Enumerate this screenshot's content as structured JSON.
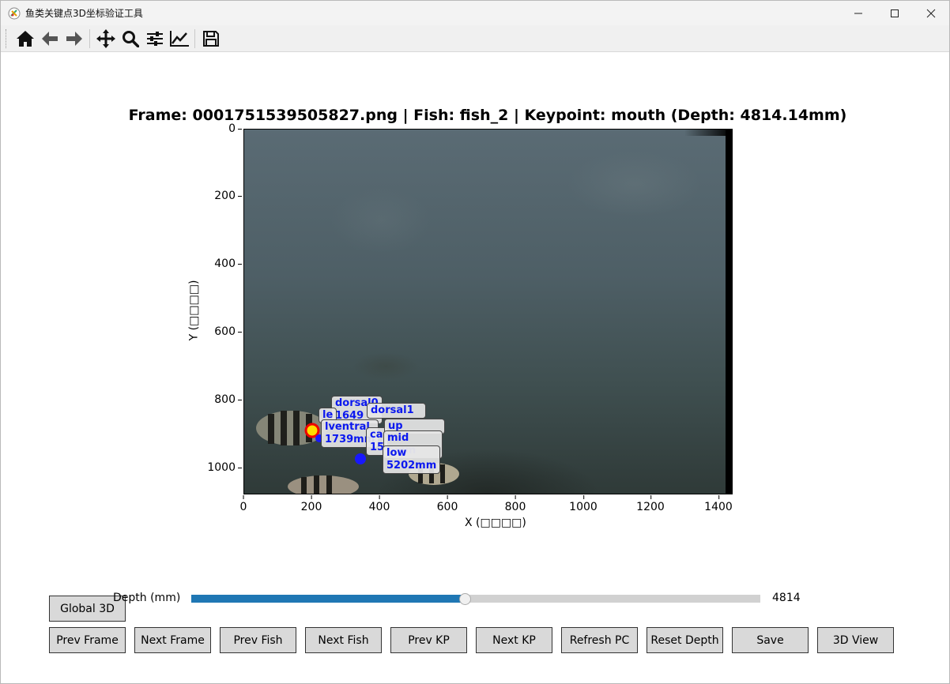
{
  "window": {
    "title": "鱼类关键点3D坐标验证工具",
    "controls": [
      "minimize",
      "maximize",
      "close"
    ]
  },
  "toolbar": {
    "buttons": [
      {
        "name": "home-icon"
      },
      {
        "name": "back-icon"
      },
      {
        "name": "forward-icon"
      },
      {
        "name": "pan-icon"
      },
      {
        "name": "zoom-icon"
      },
      {
        "name": "configure-subplots-icon"
      },
      {
        "name": "edit-axis-icon"
      },
      {
        "name": "save-figure-icon"
      }
    ]
  },
  "figure": {
    "title": "Frame: 0001751539505827.png | Fish: fish_2 | Keypoint: mouth (Depth: 4814.14mm)",
    "xlabel": "X (□□□□)",
    "ylabel": "Y (□□□□)",
    "xticks": [
      "0",
      "200",
      "400",
      "600",
      "800",
      "1000",
      "1200",
      "1400"
    ],
    "yticks": [
      "0",
      "200",
      "400",
      "600",
      "800",
      "1000"
    ],
    "xlim": [
      0,
      1440
    ],
    "ylim": [
      1080,
      0
    ],
    "keypoint_labels": [
      {
        "line1": "dorsal0",
        "line2": "1649"
      },
      {
        "line1": "le",
        "line2": ""
      },
      {
        "line1": "lventral",
        "line2": "1739mm"
      },
      {
        "line1": "dorsal1",
        "line2": ""
      },
      {
        "line1": "ca",
        "line2": "15"
      },
      {
        "line1": "up",
        "line2": ""
      },
      {
        "line1": "mid",
        "line2": "5mm"
      },
      {
        "line1": "low",
        "line2": "5202mm"
      }
    ]
  },
  "controls": {
    "global3d_label": "Global 3D",
    "depth_label": "Depth (mm)",
    "depth_value": "4814",
    "depth_fraction": 0.48,
    "colors": {
      "slider_fill": "#1f77b4",
      "label_text": "#0b18ef"
    },
    "buttons": [
      {
        "name": "prev-frame-button",
        "label": "Prev Frame"
      },
      {
        "name": "next-frame-button",
        "label": "Next Frame"
      },
      {
        "name": "prev-fish-button",
        "label": "Prev Fish"
      },
      {
        "name": "next-fish-button",
        "label": "Next Fish"
      },
      {
        "name": "prev-kp-button",
        "label": "Prev KP"
      },
      {
        "name": "next-kp-button",
        "label": "Next KP"
      },
      {
        "name": "refresh-pc-button",
        "label": "Refresh PC"
      },
      {
        "name": "reset-depth-button",
        "label": "Reset Depth"
      },
      {
        "name": "save-button",
        "label": "Save"
      },
      {
        "name": "3d-view-button",
        "label": "3D View"
      }
    ]
  }
}
